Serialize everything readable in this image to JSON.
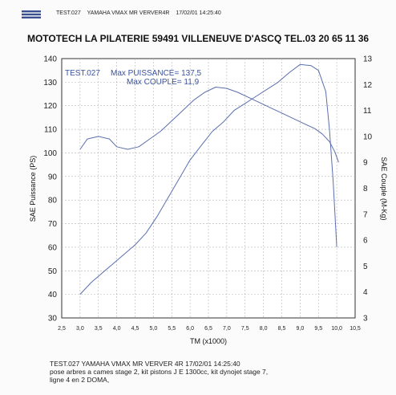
{
  "header": {
    "test_id": "TEST.027",
    "vehicle": "YAMAHA VMAX MR VERVER4R",
    "datetime": "17/02/01 14:25:40"
  },
  "shop_title": "MOTOTECH  LA PILATERIE 59491 VILLENEUVE D'ASCQ TEL.03 20 65 11 36",
  "footer": {
    "line1": "TEST.027   YAMAHA VMAX MR VERVER    4R   17/02/01 14:25:40",
    "line2": "pose arbres a cames stage 2, kit pistons J E 1300cc, kit dynojet stage 7,",
    "line3": "ligne 4 en 2 DOMA,"
  },
  "chart_data": {
    "type": "line",
    "xlabel": "TM (x1000)",
    "ylabel": "SAE Puissance (PS)",
    "y2label": "SAE Couple (M-Kg)",
    "xlim": [
      2.5,
      10.5
    ],
    "ylim": [
      30,
      140
    ],
    "y2lim": [
      3,
      13
    ],
    "x_ticks": [
      "2,5",
      "3,0",
      "3,5",
      "4,0",
      "4,5",
      "5,0",
      "5,5",
      "6,0",
      "6,5",
      "7,0",
      "7,5",
      "8,0",
      "8,5",
      "9,0",
      "9,5",
      "10,0",
      "10,5"
    ],
    "y_ticks": [
      "30",
      "40",
      "50",
      "60",
      "70",
      "80",
      "90",
      "100",
      "110",
      "120",
      "130",
      "140"
    ],
    "y2_ticks": [
      "3",
      "4",
      "5",
      "6",
      "7",
      "8",
      "9",
      "10",
      "11",
      "12",
      "13"
    ],
    "grid": true,
    "annotations": {
      "test_label": "TEST.027",
      "max_power": "Max PUISSANCE= 137,5",
      "max_torque": "Max COUPLE= 11,9"
    },
    "series": [
      {
        "axis": "left",
        "unit": "PS",
        "x": [
          3.0,
          3.3,
          3.6,
          3.9,
          4.2,
          4.5,
          4.8,
          5.1,
          5.4,
          5.7,
          6.0,
          6.3,
          6.6,
          6.9,
          7.2,
          7.5,
          7.8,
          8.1,
          8.4,
          8.7,
          9.0,
          9.3,
          9.5,
          9.7,
          9.8,
          9.9,
          10.0
        ],
        "values": [
          40,
          45,
          49,
          53,
          57,
          61,
          66,
          73,
          81,
          89,
          97,
          103,
          109,
          113,
          118,
          121,
          124,
          127,
          130,
          134,
          137.5,
          137,
          135,
          126,
          110,
          88,
          60
        ]
      },
      {
        "axis": "right",
        "unit": "M-Kg",
        "x": [
          3.0,
          3.2,
          3.5,
          3.8,
          4.0,
          4.3,
          4.6,
          4.9,
          5.2,
          5.5,
          5.8,
          6.1,
          6.4,
          6.7,
          7.0,
          7.3,
          7.6,
          7.9,
          8.2,
          8.5,
          8.8,
          9.1,
          9.4,
          9.6,
          9.8,
          9.95,
          10.05
        ],
        "values": [
          9.5,
          9.9,
          10.0,
          9.9,
          9.6,
          9.5,
          9.6,
          9.9,
          10.2,
          10.6,
          11.0,
          11.4,
          11.7,
          11.9,
          11.85,
          11.7,
          11.5,
          11.3,
          11.1,
          10.9,
          10.7,
          10.5,
          10.3,
          10.1,
          9.8,
          9.4,
          9.0
        ]
      }
    ]
  }
}
